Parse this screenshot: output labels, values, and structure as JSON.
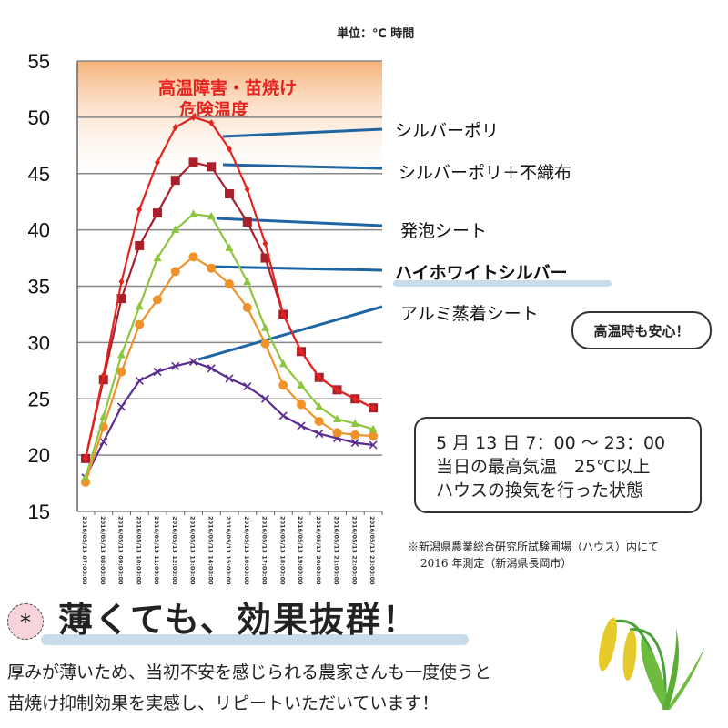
{
  "unit_label": "単位：℃ 時間",
  "danger_zone": {
    "line1": "高温障害・苗焼け",
    "line2": "危険温度",
    "from": 44,
    "to": 55,
    "color": "#f6b27a"
  },
  "chart_data": {
    "type": "line",
    "ylim": [
      15,
      55
    ],
    "yticks": [
      15,
      20,
      25,
      30,
      35,
      40,
      45,
      50,
      55
    ],
    "grid": true,
    "categories": [
      "2016/05/13 07:00:00",
      "2016/05/13 08:00:00",
      "2016/05/13 09:00:00",
      "2016/05/13 10:00:00",
      "2016/05/13 11:00:00",
      "2016/05/13 12:00:00",
      "2016/05/13 13:00:00",
      "2016/05/13 14:00:00",
      "2016/05/13 15:00:00",
      "2016/05/13 16:00:00",
      "2016/05/13 17:00:00",
      "2016/05/13 18:00:00",
      "2016/05/13 19:00:00",
      "2016/05/13 20:00:00",
      "2016/05/13 21:00:00",
      "2016/05/13 22:00:00",
      "2016/05/13 23:00:00"
    ],
    "series": [
      {
        "name": "シルバーポリ",
        "color": "#e52420",
        "marker": "diamond",
        "values": [
          19.7,
          27.1,
          35.4,
          41.8,
          46,
          49.1,
          50,
          49.5,
          47.2,
          43.6,
          38.8,
          32.5,
          29.2,
          26.9,
          25.8,
          25,
          24.2
        ]
      },
      {
        "name": "シルバーポリ＋不織布",
        "color": "#a8202a",
        "marker": "square",
        "values": [
          19.7,
          26.7,
          33.9,
          38.6,
          41.5,
          44.4,
          46,
          45.6,
          43.2,
          40.7,
          37.5,
          32.5,
          29.2,
          26.9,
          25.8,
          25,
          24.2
        ]
      },
      {
        "name": "発泡シート",
        "color": "#8cc63f",
        "marker": "triangle",
        "values": [
          18,
          23.4,
          28.9,
          33.2,
          37.5,
          40,
          41.4,
          41.2,
          38.4,
          35.4,
          31.3,
          28.1,
          26.2,
          24.3,
          23.2,
          22.8,
          22.3
        ]
      },
      {
        "name": "ハイホワイトシルバー",
        "color": "#f0922a",
        "marker": "circle",
        "values": [
          17.6,
          22.5,
          27.4,
          31.6,
          33.8,
          36.3,
          37.6,
          36.6,
          35.2,
          33.1,
          29.9,
          26.2,
          24.5,
          23,
          22,
          21.8,
          21.7
        ]
      },
      {
        "name": "アルミ蒸着シート",
        "color": "#5b2d8e",
        "marker": "x",
        "values": [
          18,
          21.2,
          24.3,
          26.6,
          27.4,
          27.9,
          28.3,
          27.7,
          26.8,
          26.1,
          25,
          23.5,
          22.6,
          21.9,
          21.5,
          21.1,
          20.9
        ]
      }
    ]
  },
  "badge": "高温時も安心！",
  "note": {
    "line1": "5 月 13 日 7：00 ～ 23：00",
    "line2": "当日の最高気温　25℃以上",
    "line3": "ハウスの換気を行った状態"
  },
  "footnote": {
    "line1": "※新潟県農業総合研究所試験圃場（ハウス）内にて",
    "line2": "2016 年測定（新潟県長岡市）"
  },
  "headline": "薄くても、効果抜群！",
  "body": {
    "line1": "厚みが薄いため、当初不安を感じられる農家さんも一度使うと",
    "line2": "苗焼け抑制効果を実感し、リピートいただいています！"
  },
  "leader_color": "#1f64a3"
}
